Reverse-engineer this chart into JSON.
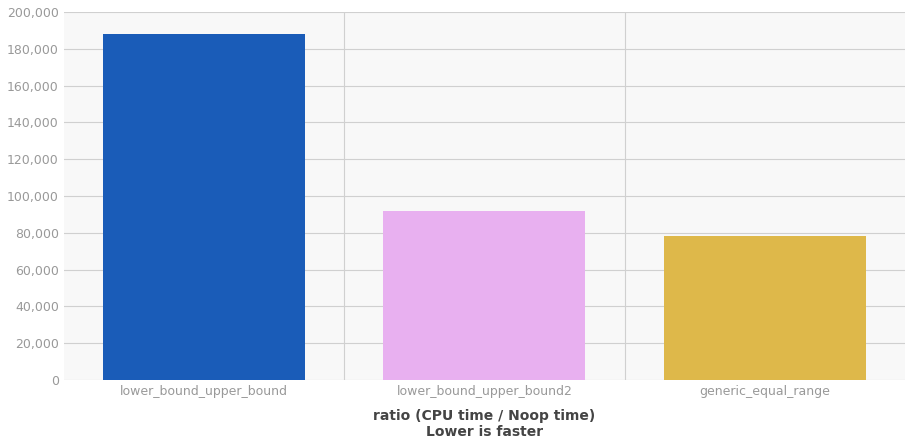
{
  "categories": [
    "lower_bound_upper_bound",
    "lower_bound_upper_bound2",
    "generic_equal_range"
  ],
  "values": [
    188000,
    92000,
    78000
  ],
  "bar_colors": [
    "#1a5cb8",
    "#e8b0f0",
    "#deb84a"
  ],
  "ylim": [
    0,
    200000
  ],
  "yticks": [
    0,
    20000,
    40000,
    60000,
    80000,
    100000,
    120000,
    140000,
    160000,
    180000,
    200000
  ],
  "xlabel_line1": "ratio (CPU time / Noop time)",
  "xlabel_line2": "Lower is faster",
  "background_color": "#ffffff",
  "plot_area_color": "#f8f8f8",
  "grid_color": "#d0d0d0",
  "separator_color": "#d0d0d0",
  "bar_width": 0.72,
  "tick_label_color": "#999999",
  "xlabel_color": "#444444",
  "xlabel_fontsize": 10,
  "tick_fontsize": 9
}
